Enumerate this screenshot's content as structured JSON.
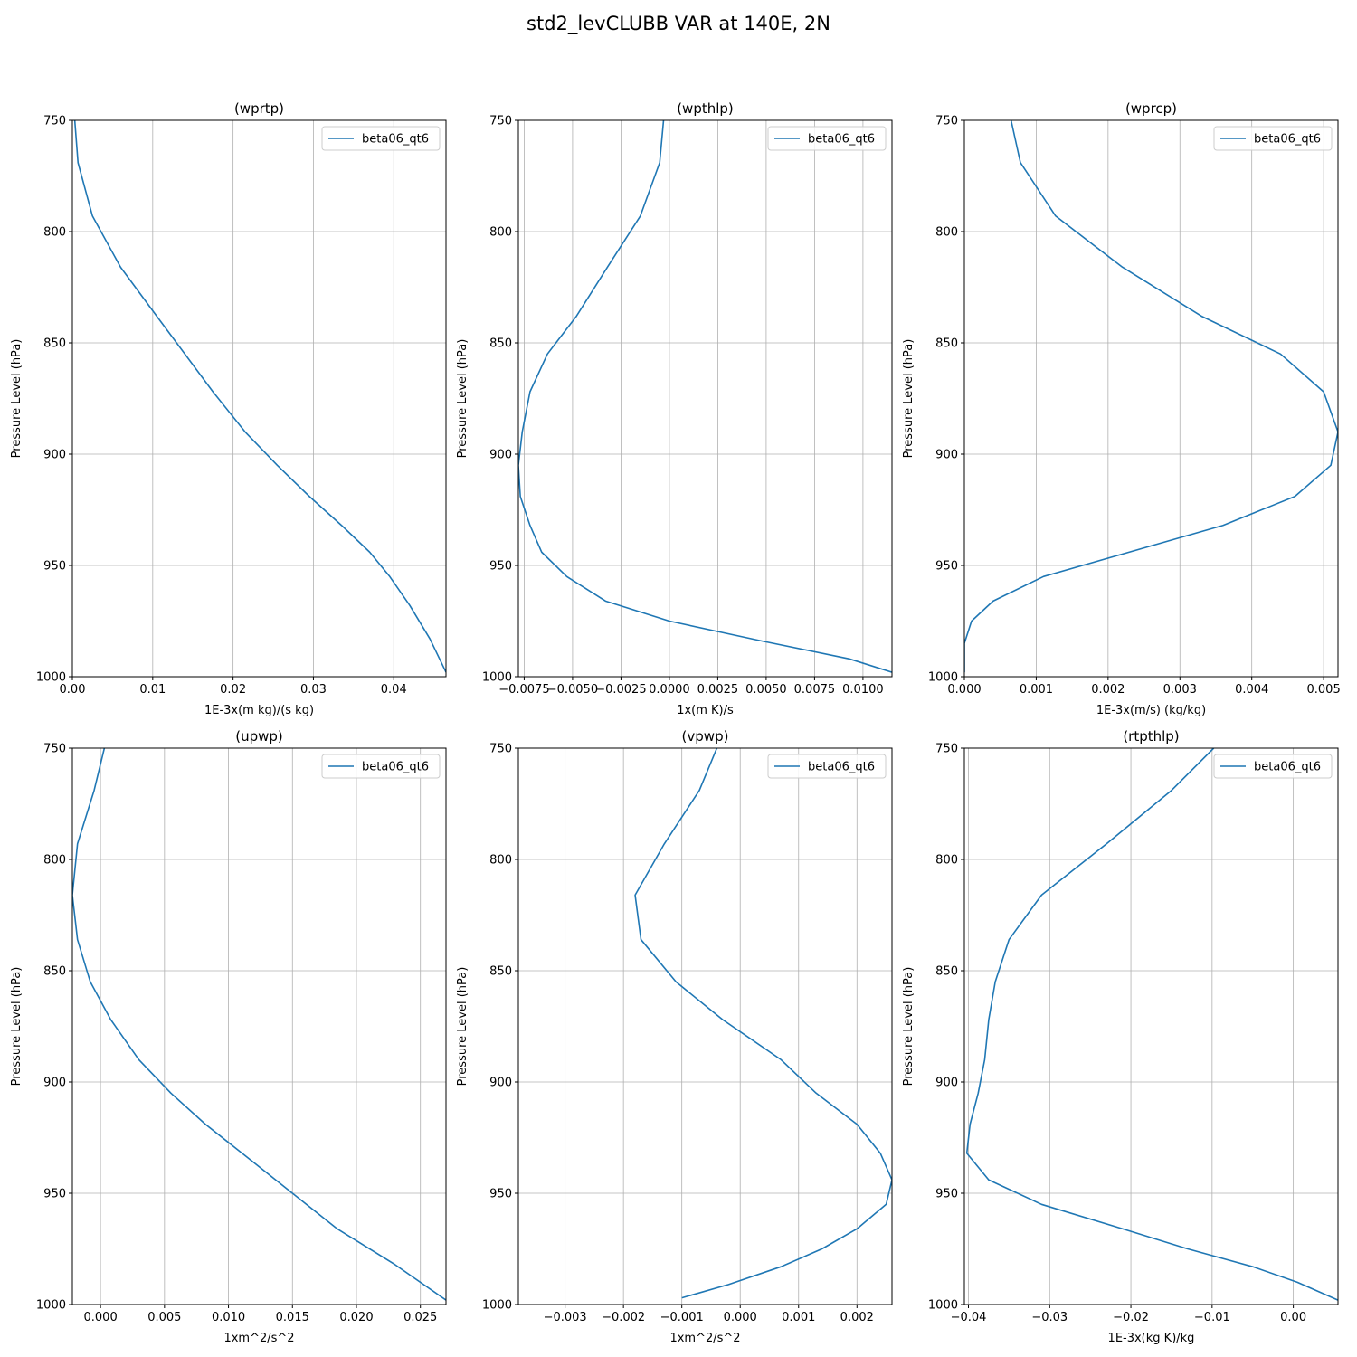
{
  "figure": {
    "title": "std2_levCLUBB VAR at 140E, 2N"
  },
  "chart_data": [
    {
      "type": "line",
      "title": "(wprtp)",
      "xlabel": "1E-3x(m kg)/(s kg)",
      "ylabel": "Pressure Level (hPa)",
      "xlim": [
        0.0,
        0.0465
      ],
      "ylim": [
        1000,
        750
      ],
      "xticks": [
        0.0,
        0.01,
        0.02,
        0.03,
        0.04
      ],
      "xtick_labels": [
        "0.00",
        "0.01",
        "0.02",
        "0.03",
        "0.04"
      ],
      "yticks": [
        750,
        800,
        850,
        900,
        950,
        1000
      ],
      "ytick_labels": [
        "750",
        "800",
        "850",
        "900",
        "950",
        "1000"
      ],
      "grid": true,
      "legend": "top-right",
      "series": [
        {
          "name": "beta06_qt6",
          "color": "#1f77b4",
          "x": [
            0.0003,
            0.0007,
            0.0025,
            0.006,
            0.0105,
            0.0175,
            0.0215,
            0.0255,
            0.0295,
            0.0335,
            0.037,
            0.0395,
            0.042,
            0.0445,
            0.0465
          ],
          "y": [
            750,
            769,
            793,
            816,
            838,
            872,
            890,
            905,
            919,
            932,
            944,
            955,
            968,
            983,
            998
          ]
        }
      ]
    },
    {
      "type": "line",
      "title": "(wpthlp)",
      "xlabel": "1x(m K)/s",
      "ylabel": "Pressure Level (hPa)",
      "xlim": [
        -0.0078,
        0.0115
      ],
      "ylim": [
        1000,
        750
      ],
      "xticks": [
        -0.0075,
        -0.005,
        -0.0025,
        0.0,
        0.0025,
        0.005,
        0.0075,
        0.01
      ],
      "xtick_labels": [
        "−0.0075",
        "−0.0050",
        "−0.0025",
        "0.0000",
        "0.0025",
        "0.0050",
        "0.0075",
        "0.0100"
      ],
      "yticks": [
        750,
        800,
        850,
        900,
        950,
        1000
      ],
      "ytick_labels": [
        "750",
        "800",
        "850",
        "900",
        "950",
        "1000"
      ],
      "grid": true,
      "legend": "top-right",
      "series": [
        {
          "name": "beta06_qt6",
          "color": "#1f77b4",
          "x": [
            -0.0003,
            -0.0005,
            -0.0015,
            -0.0032,
            -0.0048,
            -0.0063,
            -0.0072,
            -0.0076,
            -0.0078,
            -0.0077,
            -0.0072,
            -0.0066,
            -0.0053,
            -0.0033,
            0.0,
            0.0048,
            0.0093,
            0.0115
          ],
          "y": [
            750,
            769,
            793,
            816,
            838,
            855,
            872,
            890,
            905,
            919,
            932,
            944,
            955,
            966,
            975,
            984,
            992,
            998
          ]
        }
      ]
    },
    {
      "type": "line",
      "title": "(wprcp)",
      "xlabel": "1E-3x(m/s) (kg/kg)",
      "ylabel": "Pressure Level (hPa)",
      "xlim": [
        0.0,
        0.0052
      ],
      "ylim": [
        1000,
        750
      ],
      "xticks": [
        0.0,
        0.001,
        0.002,
        0.003,
        0.004,
        0.005
      ],
      "xtick_labels": [
        "0.000",
        "0.001",
        "0.002",
        "0.003",
        "0.004",
        "0.005"
      ],
      "yticks": [
        750,
        800,
        850,
        900,
        950,
        1000
      ],
      "ytick_labels": [
        "750",
        "800",
        "850",
        "900",
        "950",
        "1000"
      ],
      "grid": true,
      "legend": "top-right",
      "series": [
        {
          "name": "beta06_qt6",
          "color": "#1f77b4",
          "x": [
            0.00065,
            0.00078,
            0.00127,
            0.0022,
            0.0033,
            0.0044,
            0.005,
            0.0052,
            0.0051,
            0.0046,
            0.0036,
            0.0011,
            0.0004,
            0.0001,
            0.0,
            0.0
          ],
          "y": [
            750,
            769,
            793,
            816,
            838,
            855,
            872,
            890,
            905,
            919,
            932,
            955,
            966,
            975,
            985,
            998
          ]
        }
      ]
    },
    {
      "type": "line",
      "title": "(upwp)",
      "xlabel": "1xm^2/s^2",
      "ylabel": "Pressure Level (hPa)",
      "xlim": [
        -0.0022,
        0.027
      ],
      "ylim": [
        1000,
        750
      ],
      "xticks": [
        0.0,
        0.005,
        0.01,
        0.015,
        0.02,
        0.025
      ],
      "xtick_labels": [
        "0.000",
        "0.005",
        "0.010",
        "0.015",
        "0.020",
        "0.025"
      ],
      "yticks": [
        750,
        800,
        850,
        900,
        950,
        1000
      ],
      "ytick_labels": [
        "750",
        "800",
        "850",
        "900",
        "950",
        "1000"
      ],
      "grid": true,
      "legend": "top-right",
      "series": [
        {
          "name": "beta06_qt6",
          "color": "#1f77b4",
          "x": [
            0.0003,
            -0.0005,
            -0.0018,
            -0.0022,
            -0.0018,
            -0.0008,
            0.0008,
            0.003,
            0.0055,
            0.0082,
            0.0115,
            0.015,
            0.0185,
            0.023,
            0.027
          ],
          "y": [
            750,
            769,
            793,
            816,
            836,
            855,
            872,
            890,
            905,
            919,
            934,
            950,
            966,
            982,
            998
          ]
        }
      ]
    },
    {
      "type": "line",
      "title": "(vpwp)",
      "xlabel": "1xm^2/s^2",
      "ylabel": "Pressure Level (hPa)",
      "xlim": [
        -0.0038,
        0.0026
      ],
      "ylim": [
        1000,
        750
      ],
      "xticks": [
        -0.003,
        -0.002,
        -0.001,
        0.0,
        0.001,
        0.002
      ],
      "xtick_labels": [
        "−0.003",
        "−0.002",
        "−0.001",
        "0.000",
        "0.001",
        "0.002"
      ],
      "yticks": [
        750,
        800,
        850,
        900,
        950,
        1000
      ],
      "ytick_labels": [
        "750",
        "800",
        "850",
        "900",
        "950",
        "1000"
      ],
      "grid": true,
      "legend": "top-right",
      "series": [
        {
          "name": "beta06_qt6",
          "color": "#1f77b4",
          "x": [
            -0.0004,
            -0.0007,
            -0.0013,
            -0.0018,
            -0.0017,
            -0.0011,
            -0.0003,
            0.0007,
            0.0013,
            0.002,
            0.0024,
            0.0026,
            0.0025,
            0.002,
            0.0014,
            0.0007,
            -0.0002,
            -0.001
          ],
          "y": [
            750,
            769,
            793,
            816,
            836,
            855,
            872,
            890,
            905,
            919,
            932,
            944,
            955,
            966,
            975,
            983,
            991,
            997
          ]
        }
      ]
    },
    {
      "type": "line",
      "title": "(rtpthlp)",
      "xlabel": "1E-3x(kg K)/kg",
      "ylabel": "Pressure Level (hPa)",
      "xlim": [
        -0.0405,
        0.0055
      ],
      "ylim": [
        1000,
        750
      ],
      "xticks": [
        -0.04,
        -0.03,
        -0.02,
        -0.01,
        0.0
      ],
      "xtick_labels": [
        "−0.04",
        "−0.03",
        "−0.02",
        "−0.01",
        "0.00"
      ],
      "yticks": [
        750,
        800,
        850,
        900,
        950,
        1000
      ],
      "ytick_labels": [
        "750",
        "800",
        "850",
        "900",
        "950",
        "1000"
      ],
      "grid": true,
      "legend": "top-right",
      "series": [
        {
          "name": "beta06_qt6",
          "color": "#1f77b4",
          "x": [
            -0.0098,
            -0.015,
            -0.023,
            -0.031,
            -0.035,
            -0.0367,
            -0.0375,
            -0.038,
            -0.0388,
            -0.0398,
            -0.0402,
            -0.0375,
            -0.031,
            -0.021,
            -0.013,
            -0.005,
            0.0005,
            0.0055
          ],
          "y": [
            750,
            769,
            793,
            816,
            836,
            855,
            872,
            890,
            905,
            919,
            932,
            944,
            955,
            966,
            975,
            983,
            990,
            998
          ]
        }
      ]
    }
  ]
}
